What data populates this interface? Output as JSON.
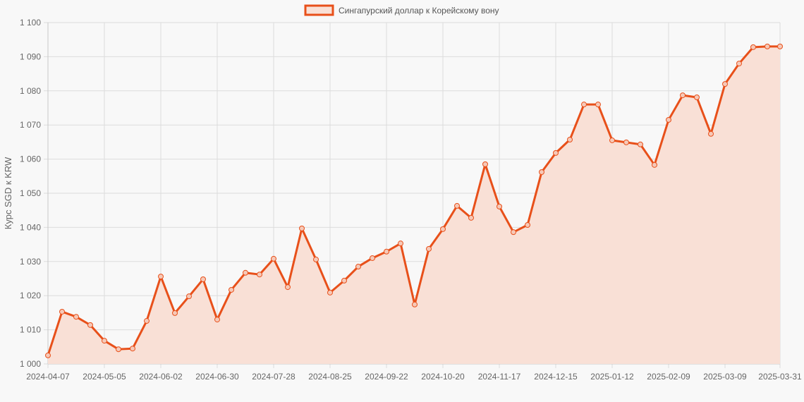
{
  "legend": {
    "label": "Сингапурский доллар к Корейскому вону",
    "line_color": "#e8501a",
    "fill_color": "#f9e0d6"
  },
  "axes": {
    "ylabel": "Курс SGD к KRW",
    "y_ticks": [
      "1 000",
      "1 010",
      "1 020",
      "1 030",
      "1 040",
      "1 050",
      "1 060",
      "1 070",
      "1 080",
      "1 090",
      "1 100"
    ],
    "x_ticks": [
      "2024-04-07",
      "2024-05-05",
      "2024-06-02",
      "2024-06-30",
      "2024-07-28",
      "2024-08-25",
      "2024-09-22",
      "2024-10-20",
      "2024-11-17",
      "2024-12-15",
      "2025-01-12",
      "2025-02-09",
      "2025-03-09",
      "2025-03-31"
    ]
  },
  "chart_data": {
    "type": "area",
    "title": "",
    "xlabel": "",
    "ylabel": "Курс SGD к KRW",
    "ylim": [
      1000,
      1100
    ],
    "grid": true,
    "legend_position": "top",
    "series": [
      {
        "name": "Сингапурский доллар к Корейскому вону",
        "values": [
          1002.5,
          1015.3,
          1013.8,
          1011.4,
          1006.8,
          1004.3,
          1004.5,
          1012.6,
          1025.6,
          1014.9,
          1019.8,
          1024.8,
          1013.0,
          1021.7,
          1026.7,
          1026.2,
          1030.8,
          1022.5,
          1039.7,
          1030.6,
          1020.9,
          1024.4,
          1028.5,
          1031.0,
          1032.9,
          1035.3,
          1017.4,
          1033.7,
          1039.5,
          1046.3,
          1042.8,
          1058.5,
          1046.1,
          1038.6,
          1040.7,
          1056.2,
          1061.8,
          1065.7,
          1076.0,
          1076.0,
          1065.5,
          1064.9,
          1064.3,
          1058.3,
          1071.5,
          1078.7,
          1078.1,
          1067.4,
          1082.0,
          1088.0,
          1092.8,
          1093.0,
          1093.0
        ]
      }
    ],
    "x_tick_labels": [
      "2024-04-07",
      "2024-05-05",
      "2024-06-02",
      "2024-06-30",
      "2024-07-28",
      "2024-08-25",
      "2024-09-22",
      "2024-10-20",
      "2024-11-17",
      "2024-12-15",
      "2025-01-12",
      "2025-02-09",
      "2025-03-09",
      "2025-03-31"
    ]
  }
}
